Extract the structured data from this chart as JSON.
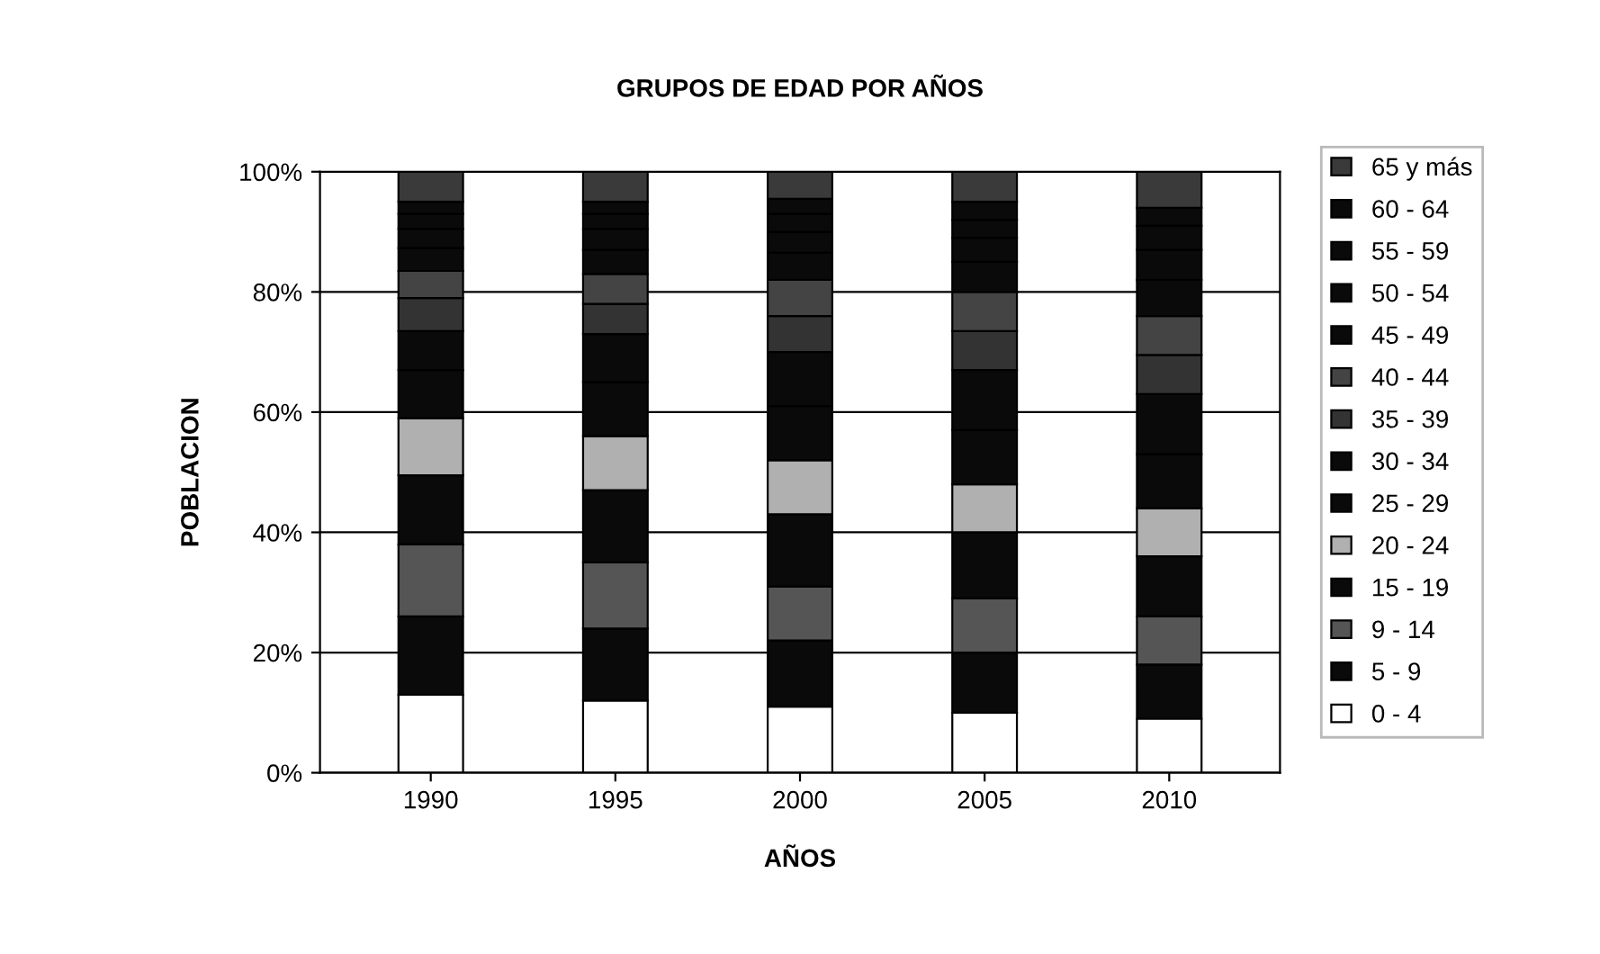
{
  "chart_data": {
    "type": "bar",
    "title": "GRUPOS DE EDAD POR AÑOS",
    "xlabel": "AÑOS",
    "ylabel": "POBLACION",
    "categories": [
      "1990",
      "1995",
      "2000",
      "2005",
      "2010"
    ],
    "stacked": true,
    "grid": "y",
    "legend": "right",
    "ylim": [
      0,
      100
    ],
    "yticks": [
      {
        "value": 0,
        "label": "0%"
      },
      {
        "value": 20,
        "label": "20%"
      },
      {
        "value": 40,
        "label": "40%"
      },
      {
        "value": 60,
        "label": "60%"
      },
      {
        "value": 80,
        "label": "80%"
      },
      {
        "value": 100,
        "label": "100%"
      }
    ],
    "series": [
      {
        "name": "0 - 4",
        "color": "#ffffff",
        "values": [
          13,
          12,
          11,
          10,
          9
        ]
      },
      {
        "name": "5 - 9",
        "color": "#0a0a0a",
        "values": [
          13,
          12,
          11,
          10,
          9
        ]
      },
      {
        "name": "9 - 14",
        "color": "#555555",
        "values": [
          12,
          11,
          9,
          9,
          8
        ]
      },
      {
        "name": "15 - 19",
        "color": "#0a0a0a",
        "values": [
          11.5,
          12,
          12,
          11,
          10
        ]
      },
      {
        "name": "20 - 24",
        "color": "#b0b0b0",
        "values": [
          9.5,
          9,
          9,
          8,
          8
        ]
      },
      {
        "name": "25 - 29",
        "color": "#0a0a0a",
        "values": [
          8,
          9,
          9,
          9,
          9
        ]
      },
      {
        "name": "30 - 34",
        "color": "#0a0a0a",
        "values": [
          6.5,
          8,
          9,
          10,
          10
        ]
      },
      {
        "name": "35 - 39",
        "color": "#333333",
        "values": [
          5.5,
          5,
          6,
          6.5,
          6.5
        ]
      },
      {
        "name": "40 - 44",
        "color": "#444444",
        "values": [
          4.5,
          5,
          6,
          6.5,
          6.5
        ]
      },
      {
        "name": "45 - 49",
        "color": "#0a0a0a",
        "values": [
          3.8,
          4,
          4.5,
          5,
          6
        ]
      },
      {
        "name": "50 - 54",
        "color": "#0a0a0a",
        "values": [
          3.2,
          3.5,
          3.5,
          4,
          5
        ]
      },
      {
        "name": "55 - 59",
        "color": "#0a0a0a",
        "values": [
          2.5,
          2.5,
          3,
          3,
          4
        ]
      },
      {
        "name": "60 - 64",
        "color": "#0a0a0a",
        "values": [
          2,
          2,
          2.5,
          3,
          3
        ]
      },
      {
        "name": "65 y más",
        "color": "#3a3a3a",
        "values": [
          5,
          5,
          4.5,
          5,
          6
        ]
      }
    ]
  }
}
